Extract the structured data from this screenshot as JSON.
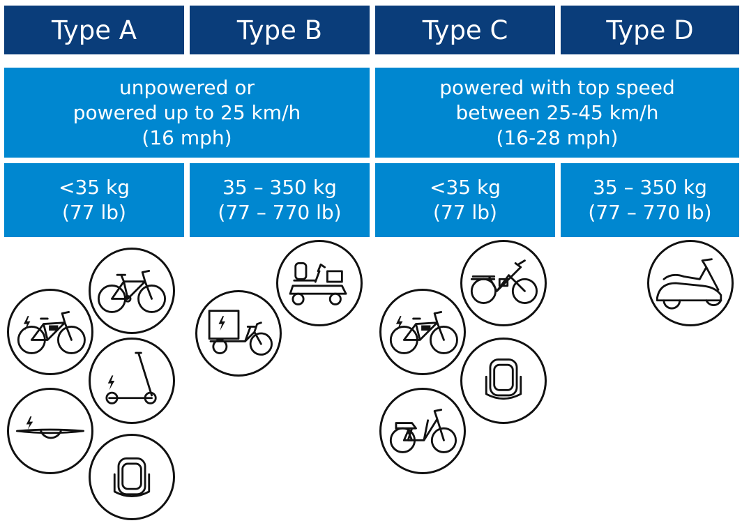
{
  "types": [
    {
      "id": "a",
      "label": "Type A"
    },
    {
      "id": "b",
      "label": "Type B"
    },
    {
      "id": "c",
      "label": "Type C"
    },
    {
      "id": "d",
      "label": "Type D"
    }
  ],
  "speed_classes": [
    {
      "lines": [
        "unpowered or",
        "powered up to 25 km/h",
        "(16 mph)"
      ]
    },
    {
      "lines": [
        "powered with top speed",
        "between 25-45 km/h",
        "(16-28 mph)"
      ]
    }
  ],
  "weight_classes": [
    {
      "lines": [
        "<35 kg",
        "(77 lb)"
      ]
    },
    {
      "lines": [
        "35 – 350 kg",
        "(77 – 770 lb)"
      ]
    },
    {
      "lines": [
        "<35 kg",
        "(77 lb)"
      ]
    },
    {
      "lines": [
        "35 – 350 kg",
        "(77 – 770 lb)"
      ]
    }
  ],
  "icons": {
    "type_a": [
      "bicycle-icon",
      "e-bike-icon",
      "e-scooter-icon",
      "onewheel-icon",
      "monowheel-icon"
    ],
    "type_b": [
      "mobility-scooter-icon",
      "cargo-e-bike-icon"
    ],
    "type_c": [
      "speed-pedelec-icon",
      "e-bike-icon",
      "monowheel-icon",
      "moped-bike-icon"
    ],
    "type_d": [
      "moped-scooter-icon"
    ]
  }
}
